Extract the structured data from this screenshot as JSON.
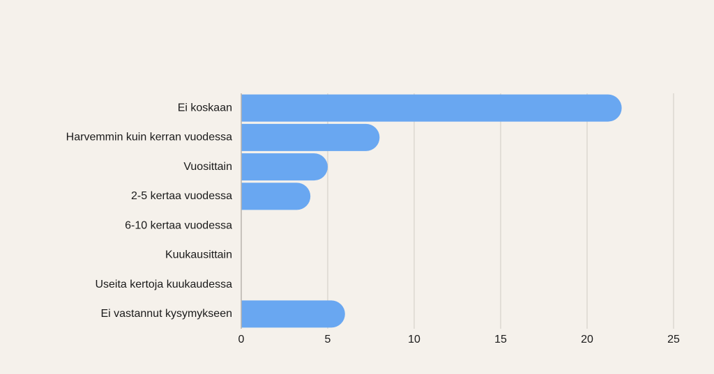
{
  "chart_data": {
    "type": "bar",
    "orientation": "horizontal",
    "categories": [
      "Ei koskaan",
      "Harvemmin kuin kerran vuodessa",
      "Vuosittain",
      "2-5 kertaa vuodessa",
      "6-10 kertaa vuodessa",
      "Kuukausittain",
      "Useita kertoja kuukaudessa",
      "Ei vastannut kysymykseen"
    ],
    "values": [
      22,
      8,
      5,
      4,
      0,
      0,
      0,
      6
    ],
    "xlim": [
      0,
      25
    ],
    "xticks": [
      0,
      5,
      10,
      15,
      20,
      25
    ],
    "grid": "vertical",
    "bar_color": "#69a7f1"
  }
}
